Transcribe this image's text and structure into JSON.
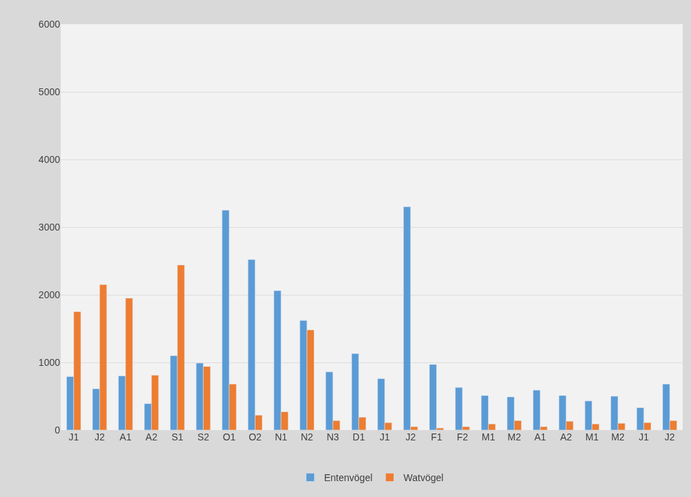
{
  "chart_data": {
    "type": "bar",
    "categories": [
      "J1",
      "J2",
      "A1",
      "A2",
      "S1",
      "S2",
      "O1",
      "O2",
      "N1",
      "N2",
      "N3",
      "D1",
      "J1",
      "J2",
      "F1",
      "F2",
      "M1",
      "M2",
      "A1",
      "A2",
      "M1",
      "M2",
      "J1",
      "J2"
    ],
    "series": [
      {
        "name": "Entenvögel",
        "color": "#5b9bd5",
        "values": [
          790,
          610,
          800,
          390,
          1100,
          990,
          3250,
          2520,
          2060,
          1620,
          860,
          1130,
          760,
          3300,
          970,
          630,
          510,
          490,
          590,
          510,
          430,
          500,
          330,
          680
        ]
      },
      {
        "name": "Watvögel",
        "color": "#ed7d31",
        "values": [
          1750,
          2150,
          1950,
          810,
          2440,
          940,
          680,
          220,
          270,
          1480,
          140,
          190,
          110,
          50,
          30,
          50,
          90,
          140,
          50,
          130,
          90,
          100,
          110,
          140
        ]
      }
    ],
    "ylim": [
      0,
      6000
    ],
    "yticks": [
      0,
      1000,
      2000,
      3000,
      4000,
      5000,
      6000
    ],
    "grid": "y",
    "legend": "bottom"
  }
}
